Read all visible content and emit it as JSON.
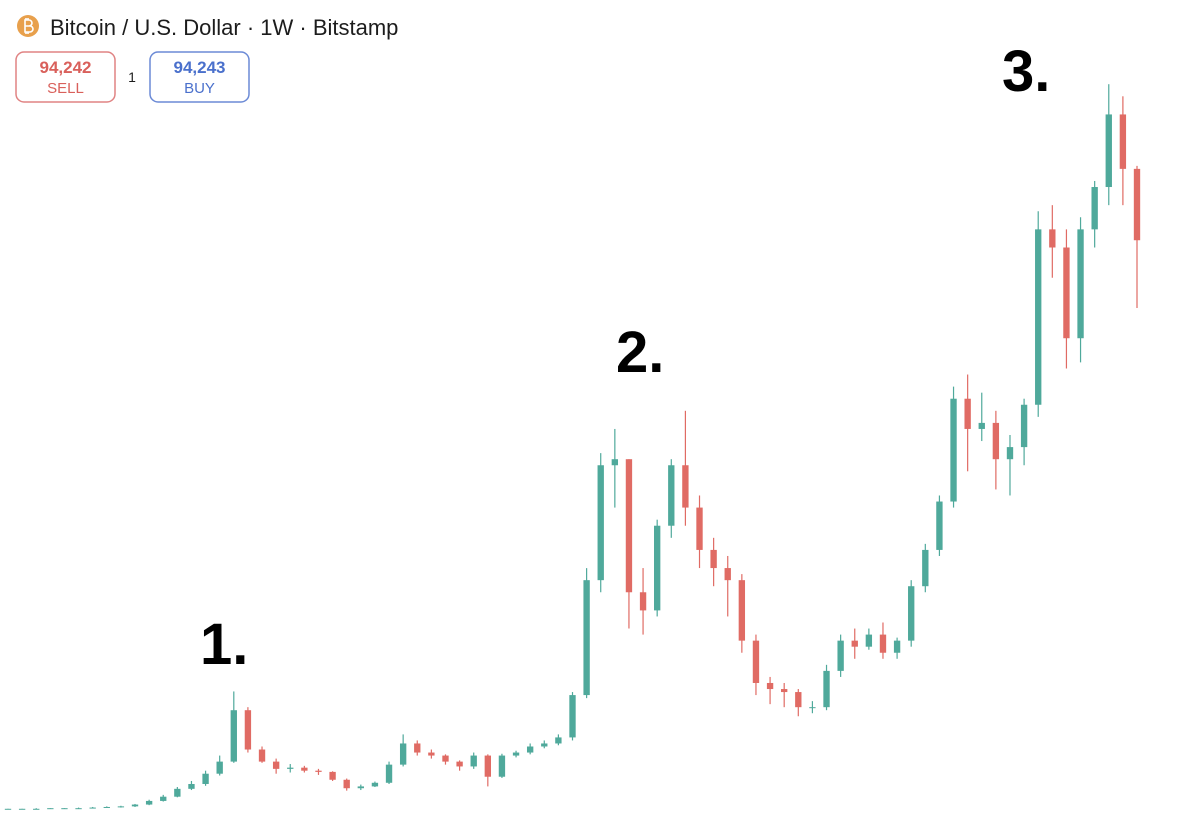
{
  "header": {
    "title": "Bitcoin / U.S. Dollar · 1W · Bitstamp",
    "sell": {
      "price": "94,242",
      "label": "SELL"
    },
    "quantity": "1",
    "buy": {
      "price": "94,243",
      "label": "BUY"
    }
  },
  "chart_data": {
    "type": "candlestick",
    "annotations": [
      "1.",
      "2.",
      "3."
    ],
    "up_color": "#4fa99b",
    "down_color": "#e06b64",
    "ylim": [
      0,
      124000
    ],
    "open": [
      200,
      200,
      200,
      200,
      300,
      300,
      300,
      400,
      500,
      600,
      900,
      1500,
      2200,
      3500,
      4300,
      6000,
      8000,
      16500,
      10000,
      8000,
      6800,
      7000,
      6500,
      6300,
      5000,
      3600,
      3900,
      4500,
      7500,
      11000,
      9500,
      9000,
      8000,
      7200,
      9000,
      5500,
      9000,
      9500,
      10500,
      11000,
      12000,
      19000,
      38000,
      57000,
      58000,
      36000,
      33000,
      47000,
      57000,
      50000,
      43000,
      40000,
      38000,
      28000,
      21000,
      20000,
      19500,
      17000,
      17000,
      23000,
      28000,
      27000,
      29000,
      26000,
      28000,
      37000,
      43000,
      51000,
      68000,
      63000,
      64000,
      58000,
      60000,
      67000,
      96000,
      93000,
      78000,
      96000,
      103000,
      115000,
      106000
    ],
    "high": [
      200,
      200,
      300,
      300,
      300,
      400,
      500,
      600,
      700,
      1000,
      1700,
      2500,
      3800,
      4800,
      6500,
      9000,
      19600,
      17000,
      10500,
      8500,
      7600,
      7300,
      6800,
      6400,
      5200,
      4200,
      4700,
      8000,
      12500,
      11500,
      10000,
      9200,
      8200,
      9500,
      9200,
      9300,
      9800,
      11000,
      11500,
      12500,
      19500,
      40000,
      59000,
      63000,
      58000,
      40000,
      48000,
      58000,
      66000,
      52000,
      45000,
      42000,
      39000,
      29000,
      22000,
      21000,
      20000,
      18000,
      24000,
      29000,
      30000,
      30000,
      31000,
      28500,
      38000,
      44000,
      52000,
      70000,
      72000,
      69000,
      66000,
      62000,
      68000,
      99000,
      100000,
      96000,
      98000,
      104000,
      120000,
      118000,
      106500
    ],
    "low": [
      100,
      100,
      100,
      200,
      200,
      200,
      300,
      400,
      400,
      500,
      800,
      1400,
      2100,
      3300,
      4000,
      5700,
      7800,
      9500,
      7800,
      6000,
      6200,
      6200,
      5800,
      4800,
      3200,
      3300,
      3800,
      4300,
      7200,
      9000,
      8500,
      7500,
      6500,
      6800,
      3900,
      5300,
      8700,
      9200,
      10200,
      10700,
      11500,
      18500,
      36000,
      50000,
      30000,
      29000,
      32000,
      45000,
      47000,
      40000,
      37000,
      32000,
      26000,
      19000,
      17500,
      17000,
      15500,
      16000,
      16500,
      22000,
      25000,
      26500,
      25000,
      25000,
      27000,
      36000,
      42000,
      50000,
      56000,
      61000,
      53000,
      52000,
      57000,
      65000,
      88000,
      73000,
      74000,
      93000,
      100000,
      100000,
      83000
    ],
    "close": [
      200,
      200,
      200,
      300,
      300,
      300,
      400,
      500,
      600,
      900,
      1500,
      2200,
      3500,
      4300,
      6000,
      8000,
      16500,
      10000,
      8000,
      6800,
      7000,
      6500,
      6300,
      5000,
      3600,
      3900,
      4500,
      7500,
      11000,
      9500,
      9000,
      8000,
      7200,
      9000,
      5500,
      9000,
      9500,
      10500,
      11000,
      12000,
      19000,
      38000,
      57000,
      58000,
      36000,
      33000,
      47000,
      57000,
      50000,
      43000,
      40000,
      38000,
      28000,
      21000,
      20000,
      19500,
      17000,
      17000,
      23000,
      28000,
      27000,
      29000,
      26000,
      28000,
      37000,
      43000,
      51000,
      68000,
      63000,
      64000,
      58000,
      60000,
      67000,
      96000,
      93000,
      78000,
      96000,
      103000,
      115000,
      106000,
      94200
    ]
  }
}
